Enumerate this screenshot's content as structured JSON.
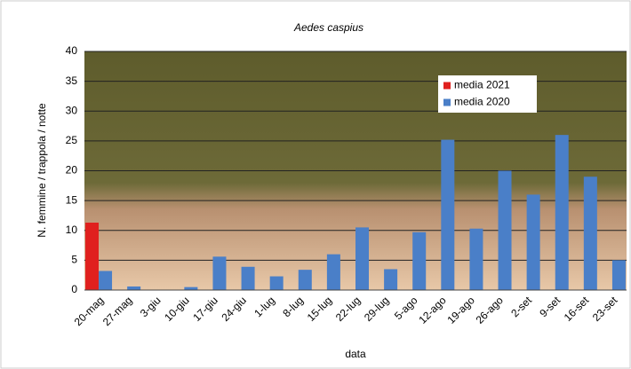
{
  "chart_data": {
    "type": "bar",
    "title": "Aedes caspius",
    "y_label": "N. femmine / trappola / notte",
    "x_label": "data",
    "categories": [
      "20-mag",
      "27-mag",
      "3-giu",
      "10-giu",
      "17-giu",
      "24-giu",
      "1-lug",
      "8-lug",
      "15-lug",
      "22-lug",
      "29-lug",
      "5-ago",
      "12-ago",
      "19-ago",
      "26-ago",
      "2-set",
      "9-set",
      "16-set",
      "23-set"
    ],
    "series": [
      {
        "name": "media 2021",
        "color": "#e0201e",
        "values": [
          11.3,
          null,
          null,
          null,
          null,
          null,
          null,
          null,
          null,
          null,
          null,
          null,
          null,
          null,
          null,
          null,
          null,
          null,
          null
        ]
      },
      {
        "name": "media 2020",
        "color": "#4a7fc8",
        "values": [
          3.2,
          0.6,
          0,
          0.5,
          5.6,
          3.9,
          2.3,
          3.4,
          6,
          10.5,
          3.5,
          9.7,
          25.2,
          10.3,
          20,
          16,
          26,
          19,
          5
        ]
      }
    ],
    "ylim": [
      0,
      40
    ],
    "yticks": [
      0,
      5,
      10,
      15,
      20,
      25,
      30,
      35,
      40
    ],
    "grid": true,
    "legend": "top-right"
  }
}
